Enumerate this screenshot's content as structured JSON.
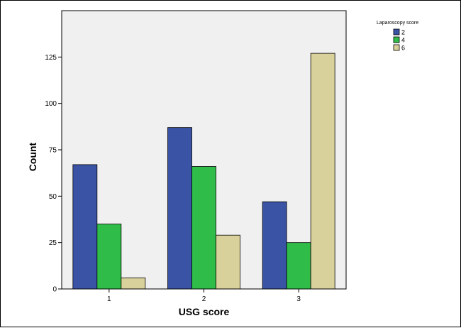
{
  "chart_data": {
    "type": "bar",
    "xlabel": "USG score",
    "ylabel": "Count",
    "categories": [
      "1",
      "2",
      "3"
    ],
    "series": [
      {
        "name": "2",
        "values": [
          67,
          87,
          47
        ],
        "color": "#3a53a4"
      },
      {
        "name": "4",
        "values": [
          35,
          66,
          25
        ],
        "color": "#2fbc48"
      },
      {
        "name": "6",
        "values": [
          6,
          29,
          127
        ],
        "color": "#d8d19b"
      }
    ],
    "legend_title": "Laparoscopy score",
    "legend_position": "top-right",
    "ylim": [
      0,
      150
    ],
    "yticks": [
      "0",
      "25",
      "50",
      "75",
      "100",
      "125"
    ],
    "plot_background": "#f0f0f0",
    "grid": false
  }
}
